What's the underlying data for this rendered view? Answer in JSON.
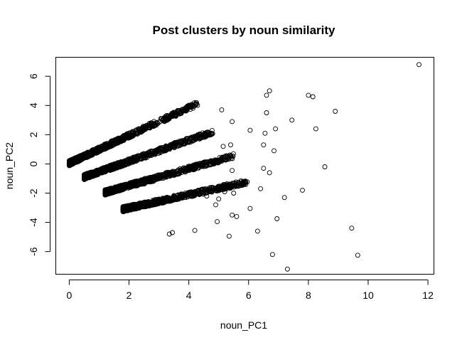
{
  "chart_data": {
    "type": "scatter",
    "title": "Post clusters by noun similarity",
    "xlabel": "noun_PC1",
    "ylabel": "noun_PC2",
    "xlim": [
      -0.45,
      12.2
    ],
    "ylim": [
      -7.55,
      7.3
    ],
    "x_ticks": [
      0,
      2,
      4,
      6,
      8,
      10,
      12
    ],
    "y_ticks": [
      -6,
      -4,
      -2,
      0,
      2,
      4,
      6
    ],
    "grid": false,
    "marker": "open-circle",
    "clusters": [
      {
        "slope": 0.95,
        "x_range": [
          0.0,
          4.3
        ],
        "intercept": 0.05
      },
      {
        "slope": 0.72,
        "x_range": [
          0.5,
          4.8
        ],
        "intercept": -0.9
      },
      {
        "slope": 0.58,
        "x_range": [
          1.2,
          5.5
        ],
        "intercept": -1.95
      },
      {
        "slope": 0.45,
        "x_range": [
          1.8,
          6.0
        ],
        "intercept": -3.1
      }
    ],
    "outliers": [
      [
        11.7,
        6.8
      ],
      [
        6.7,
        5.0
      ],
      [
        6.6,
        4.7
      ],
      [
        8.0,
        4.7
      ],
      [
        8.15,
        4.6
      ],
      [
        5.1,
        3.7
      ],
      [
        8.9,
        3.6
      ],
      [
        6.6,
        3.5
      ],
      [
        7.45,
        3.0
      ],
      [
        5.45,
        2.9
      ],
      [
        8.25,
        2.4
      ],
      [
        6.9,
        2.4
      ],
      [
        6.05,
        2.3
      ],
      [
        6.55,
        2.1
      ],
      [
        6.5,
        1.3
      ],
      [
        5.15,
        1.2
      ],
      [
        5.4,
        1.3
      ],
      [
        6.85,
        0.9
      ],
      [
        8.55,
        -0.2
      ],
      [
        6.5,
        -0.3
      ],
      [
        6.7,
        -0.6
      ],
      [
        5.45,
        -0.45
      ],
      [
        7.8,
        -1.8
      ],
      [
        6.4,
        -1.7
      ],
      [
        7.2,
        -2.3
      ],
      [
        5.5,
        -2.0
      ],
      [
        6.05,
        -3.05
      ],
      [
        4.9,
        -2.8
      ],
      [
        5.45,
        -3.5
      ],
      [
        6.95,
        -3.75
      ],
      [
        4.95,
        -3.95
      ],
      [
        3.45,
        -4.7
      ],
      [
        3.35,
        -4.8
      ],
      [
        4.2,
        -4.55
      ],
      [
        6.3,
        -4.6
      ],
      [
        5.35,
        -4.95
      ],
      [
        9.45,
        -4.4
      ],
      [
        6.8,
        -6.2
      ],
      [
        9.65,
        -6.25
      ],
      [
        7.3,
        -7.2
      ],
      [
        5.0,
        -2.4
      ],
      [
        5.6,
        -3.6
      ],
      [
        4.6,
        -2.2
      ],
      [
        5.9,
        -1.2
      ],
      [
        5.2,
        -1.9
      ]
    ]
  }
}
